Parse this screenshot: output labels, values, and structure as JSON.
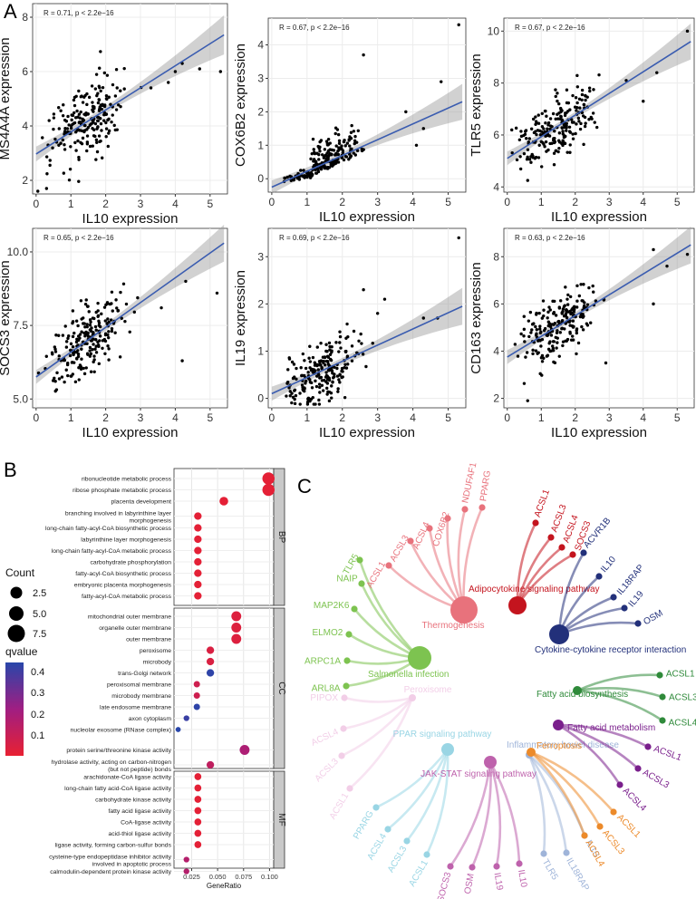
{
  "panel_labels": {
    "a": "A",
    "b": "B",
    "c": "C"
  },
  "chart_data": [
    {
      "type": "scatter",
      "title": "",
      "xlabel": "IL10 expression",
      "ylabel": "MS4A4A expression",
      "annotation": "R = 0.71, p < 2.2e−16",
      "xlim": [
        -0.1,
        5.5
      ],
      "ylim": [
        1.5,
        8.5
      ],
      "xticks": [
        0,
        1,
        2,
        3,
        4,
        5
      ],
      "yticks": [
        2,
        4,
        6,
        8
      ],
      "fit": [
        [
          0,
          2.97
        ],
        [
          5.4,
          7.35
        ]
      ],
      "outliers": [
        [
          5.3,
          6.0
        ],
        [
          4.7,
          6.1
        ],
        [
          4.0,
          6.0
        ],
        [
          4.2,
          6.3
        ],
        [
          3.8,
          5.6
        ],
        [
          3.3,
          5.4
        ],
        [
          0.05,
          1.6
        ],
        [
          0.3,
          1.7
        ]
      ]
    },
    {
      "type": "scatter",
      "title": "",
      "xlabel": "IL10 expression",
      "ylabel": "COX6B2 expression",
      "annotation": "R = 0.67, p < 2.2e−16",
      "xlim": [
        -0.1,
        5.5
      ],
      "ylim": [
        -0.4,
        4.8
      ],
      "xticks": [
        0,
        1,
        2,
        3,
        4,
        5
      ],
      "yticks": [
        0,
        1,
        2,
        3,
        4
      ],
      "fit": [
        [
          0,
          -0.25
        ],
        [
          5.4,
          2.3
        ]
      ],
      "outliers": [
        [
          5.3,
          4.6
        ],
        [
          4.3,
          1.5
        ],
        [
          2.6,
          3.7
        ],
        [
          3.8,
          2.0
        ],
        [
          4.8,
          2.9
        ],
        [
          4.1,
          1.0
        ]
      ]
    },
    {
      "type": "scatter",
      "title": "",
      "xlabel": "IL10 expression",
      "ylabel": "TLR5 expression",
      "annotation": "R = 0.67, p < 2.2e−16",
      "xlim": [
        -0.1,
        5.5
      ],
      "ylim": [
        3.8,
        10.5
      ],
      "xticks": [
        0,
        1,
        2,
        3,
        4,
        5
      ],
      "yticks": [
        4,
        6,
        8,
        10
      ],
      "fit": [
        [
          0,
          5.1
        ],
        [
          5.4,
          9.6
        ]
      ],
      "outliers": [
        [
          5.3,
          10.0
        ],
        [
          4.4,
          8.4
        ],
        [
          4.0,
          7.3
        ],
        [
          3.5,
          8.1
        ]
      ]
    },
    {
      "type": "scatter",
      "title": "",
      "xlabel": "IL10 expression",
      "ylabel": "SOCS3 expression",
      "annotation": "R = 0.65, p < 2.2e−16",
      "xlim": [
        -0.1,
        5.5
      ],
      "ylim": [
        4.7,
        10.8
      ],
      "xticks": [
        0,
        1,
        2,
        3,
        4,
        5
      ],
      "yticks": [
        5.0,
        7.5,
        10.0
      ],
      "fit": [
        [
          0,
          5.75
        ],
        [
          5.4,
          10.3
        ]
      ],
      "outliers": [
        [
          5.2,
          8.6
        ],
        [
          4.3,
          9.0
        ],
        [
          4.2,
          6.3
        ],
        [
          3.6,
          8.1
        ]
      ]
    },
    {
      "type": "scatter",
      "title": "",
      "xlabel": "IL10 expression",
      "ylabel": "IL19 expression",
      "annotation": "R = 0.69, p < 2.2e−16",
      "xlim": [
        -0.1,
        5.5
      ],
      "ylim": [
        -0.2,
        3.6
      ],
      "xticks": [
        0,
        1,
        2,
        3,
        4,
        5
      ],
      "yticks": [
        0,
        1,
        2,
        3
      ],
      "fit": [
        [
          0,
          0.1
        ],
        [
          5.4,
          1.95
        ]
      ],
      "outliers": [
        [
          5.3,
          3.4
        ],
        [
          4.7,
          1.7
        ],
        [
          4.3,
          1.7
        ],
        [
          3.2,
          2.1
        ],
        [
          3.0,
          1.8
        ],
        [
          2.6,
          2.3
        ]
      ]
    },
    {
      "type": "scatter",
      "title": "",
      "xlabel": "IL10 expression",
      "ylabel": "CD163 expression",
      "annotation": "R = 0.63, p < 2.2e−16",
      "xlim": [
        -0.1,
        5.5
      ],
      "ylim": [
        1.6,
        9.2
      ],
      "xticks": [
        0,
        1,
        2,
        3,
        4,
        5
      ],
      "yticks": [
        2,
        4,
        6,
        8
      ],
      "fit": [
        [
          0,
          3.75
        ],
        [
          5.4,
          8.5
        ]
      ],
      "outliers": [
        [
          5.3,
          8.1
        ],
        [
          4.7,
          7.6
        ],
        [
          4.3,
          8.3
        ],
        [
          4.3,
          6.0
        ],
        [
          0.6,
          1.9
        ],
        [
          2.9,
          3.5
        ]
      ]
    },
    {
      "type": "scatter",
      "subtype": "dotplot",
      "xlabel": "GeneRatio",
      "xlim": [
        0.008,
        0.104
      ],
      "xticks": [
        0.025,
        0.05,
        0.075,
        0.1
      ],
      "xtick_labels": [
        "0.025",
        "0.050",
        "0.075",
        "0.100"
      ],
      "facets": [
        "BP",
        "CC",
        "MF"
      ],
      "legend": {
        "count_title": "Count",
        "count_values": [
          "2.5",
          "5.0",
          "7.5"
        ],
        "q_title": "qvalue",
        "q_ticks": [
          "0.4",
          "0.3",
          "0.2",
          "0.1"
        ],
        "q_range": [
          0.06,
          0.45
        ]
      },
      "terms": [
        {
          "label": "ribonucleotide metabolic process",
          "facet": "BP",
          "ratio": 0.099,
          "count": 7,
          "q": 0.07
        },
        {
          "label": "ribose phosphate metabolic process",
          "facet": "BP",
          "ratio": 0.099,
          "count": 7,
          "q": 0.07
        },
        {
          "label": "placenta development",
          "facet": "BP",
          "ratio": 0.056,
          "count": 4,
          "q": 0.07
        },
        {
          "label": "branching involved in labyrinthine layer morphogenesis",
          "facet": "BP",
          "ratio": 0.031,
          "count": 3,
          "q": 0.07
        },
        {
          "label": "long-chain fatty-acyl-CoA biosynthetic process",
          "facet": "BP",
          "ratio": 0.031,
          "count": 3,
          "q": 0.07
        },
        {
          "label": "labyrinthine layer morphogenesis",
          "facet": "BP",
          "ratio": 0.031,
          "count": 3,
          "q": 0.07
        },
        {
          "label": "long-chain fatty-acyl-CoA metabolic process",
          "facet": "BP",
          "ratio": 0.031,
          "count": 3,
          "q": 0.07
        },
        {
          "label": "carbohydrate phosphorylation",
          "facet": "BP",
          "ratio": 0.031,
          "count": 3,
          "q": 0.07
        },
        {
          "label": "fatty-acyl-CoA biosynthetic process",
          "facet": "BP",
          "ratio": 0.031,
          "count": 3,
          "q": 0.07
        },
        {
          "label": "embryonic placenta morphogenesis",
          "facet": "BP",
          "ratio": 0.031,
          "count": 3,
          "q": 0.07
        },
        {
          "label": "fatty-acyl-CoA metabolic process",
          "facet": "BP",
          "ratio": 0.031,
          "count": 3,
          "q": 0.07
        },
        {
          "label": "mitochondrial outer membrane",
          "facet": "CC",
          "ratio": 0.068,
          "count": 5,
          "q": 0.09
        },
        {
          "label": "organelle outer membrane",
          "facet": "CC",
          "ratio": 0.068,
          "count": 5,
          "q": 0.09
        },
        {
          "label": "outer membrane",
          "facet": "CC",
          "ratio": 0.068,
          "count": 5,
          "q": 0.09
        },
        {
          "label": "peroxisome",
          "facet": "CC",
          "ratio": 0.043,
          "count": 3,
          "q": 0.1
        },
        {
          "label": "microbody",
          "facet": "CC",
          "ratio": 0.043,
          "count": 3,
          "q": 0.1
        },
        {
          "label": "trans-Golgi network",
          "facet": "CC",
          "ratio": 0.043,
          "count": 3,
          "q": 0.44
        },
        {
          "label": "peroxisomal membrane",
          "facet": "CC",
          "ratio": 0.03,
          "count": 2,
          "q": 0.13
        },
        {
          "label": "microbody membrane",
          "facet": "CC",
          "ratio": 0.03,
          "count": 2,
          "q": 0.13
        },
        {
          "label": "late endosome membrane",
          "facet": "CC",
          "ratio": 0.03,
          "count": 2,
          "q": 0.44
        },
        {
          "label": "axon cytoplasm",
          "facet": "CC",
          "ratio": 0.02,
          "count": 1.5,
          "q": 0.42
        },
        {
          "label": "nucleolar exosome (RNase complex)",
          "facet": "CC",
          "ratio": 0.012,
          "count": 1,
          "q": 0.45
        },
        {
          "label": "protein serine/threonine kinase activity",
          "facet": "MF",
          "ratio": 0.076,
          "count": 5,
          "q": 0.22
        },
        {
          "label": "hydrolase activity, acting on carbon-nitrogen (but not peptide) bonds",
          "facet": "MF",
          "ratio": 0.043,
          "count": 3,
          "q": 0.17
        },
        {
          "label": "arachidonate-CoA ligase activity",
          "facet": "MF",
          "ratio": 0.031,
          "count": 2.5,
          "q": 0.07
        },
        {
          "label": "long-chain fatty acid-CoA ligase activity",
          "facet": "MF",
          "ratio": 0.031,
          "count": 2.5,
          "q": 0.07
        },
        {
          "label": "carbohydrate kinase activity",
          "facet": "MF",
          "ratio": 0.031,
          "count": 2.5,
          "q": 0.07
        },
        {
          "label": "fatty acid ligase activity",
          "facet": "MF",
          "ratio": 0.031,
          "count": 2.5,
          "q": 0.07
        },
        {
          "label": "CoA-ligase activity",
          "facet": "MF",
          "ratio": 0.031,
          "count": 2.5,
          "q": 0.07
        },
        {
          "label": "acid-thiol ligase activity",
          "facet": "MF",
          "ratio": 0.031,
          "count": 2.5,
          "q": 0.07
        },
        {
          "label": "ligase activity, forming carbon-sulfur bonds",
          "facet": "MF",
          "ratio": 0.031,
          "count": 2.5,
          "q": 0.07
        },
        {
          "label": "cysteine-type endopeptidase inhibitor activity involved in apoptotic process",
          "facet": "MF",
          "ratio": 0.02,
          "count": 1.5,
          "q": 0.2
        },
        {
          "label": "calmodulin-dependent protein kinase activity",
          "facet": "MF",
          "ratio": 0.02,
          "count": 1.5,
          "q": 0.2
        }
      ]
    }
  ],
  "network": {
    "pathways": [
      {
        "id": "thermo",
        "label": "Thermogenesis",
        "color": "#e8727c",
        "genes": [
          "ACSL1",
          "ACSL3",
          "ACSL4",
          "COX6B2",
          "NDUFAF1",
          "PPARG"
        ]
      },
      {
        "id": "adipo",
        "label": "Adipocytokine signaling pathway",
        "color": "#c4141e",
        "genes": [
          "ACSL1",
          "ACSL3",
          "ACSL4",
          "SOCS3"
        ]
      },
      {
        "id": "cytok",
        "label": "Cytokine-cytokine receptor interaction",
        "color": "#22307a",
        "genes": [
          "ACVR1B",
          "IL10",
          "IL18RAP",
          "IL19",
          "OSM"
        ]
      },
      {
        "id": "salm",
        "label": "Salmonella infection",
        "color": "#7dc350",
        "genes": [
          "TLR5",
          "NAIP",
          "MAP2K6",
          "ELMO2",
          "ARPC1A",
          "ARL8A"
        ]
      },
      {
        "id": "fab",
        "label": "Fatty acid biosynthesis",
        "color": "#2f8a3a",
        "genes": [
          "ACSL1",
          "ACSL3",
          "ACSL4"
        ]
      },
      {
        "id": "fam",
        "label": "Fatty acid metabolism",
        "color": "#7a1f8c",
        "genes": [
          "ACSL1",
          "ACSL3",
          "ACSL4"
        ]
      },
      {
        "id": "ferro",
        "label": "Ferroptosis",
        "color": "#ec8a2a",
        "genes": [
          "ACSL1",
          "ACSL3",
          "ACSL4"
        ]
      },
      {
        "id": "perox",
        "label": "Peroxisome",
        "color": "#e8a7d5",
        "genes": [
          "PIPOX",
          "ACSL4",
          "ACSL3",
          "ACSL1"
        ]
      },
      {
        "id": "ppar",
        "label": "PPAR signaling pathway",
        "color": "#6ec4da",
        "genes": [
          "PPARG",
          "ACSL4",
          "ACSL3",
          "ACSL1"
        ]
      },
      {
        "id": "ibd",
        "label": "Inflammatory bowel disease",
        "color": "#7795c9",
        "genes": [
          "TLR5",
          "IL18RAP",
          "IL10"
        ]
      },
      {
        "id": "jak",
        "label": "JAK-STAT signaling pathway",
        "color": "#b3479e",
        "genes": [
          "SOCS3",
          "OSM",
          "IL19",
          "IL10"
        ]
      }
    ]
  }
}
